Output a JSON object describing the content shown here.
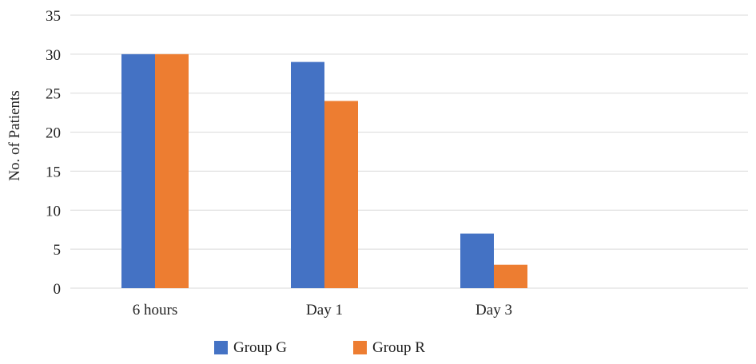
{
  "chart_data": {
    "type": "bar",
    "categories": [
      "6 hours",
      "Day 1",
      "Day 3",
      ""
    ],
    "series": [
      {
        "name": "Group G",
        "values": [
          30,
          29,
          7,
          null
        ],
        "color": "#4472C4"
      },
      {
        "name": "Group R",
        "values": [
          30,
          24,
          3,
          null
        ],
        "color": "#ED7D31"
      }
    ],
    "ylabel": "No. of Patients",
    "xlabel": "",
    "ylim": [
      0,
      35
    ],
    "yticks": [
      0,
      5,
      10,
      15,
      20,
      25,
      30,
      35
    ],
    "grid": true,
    "legend": "bottom",
    "colors": {
      "grid": "#D9D9D9",
      "text": "#222222"
    }
  }
}
